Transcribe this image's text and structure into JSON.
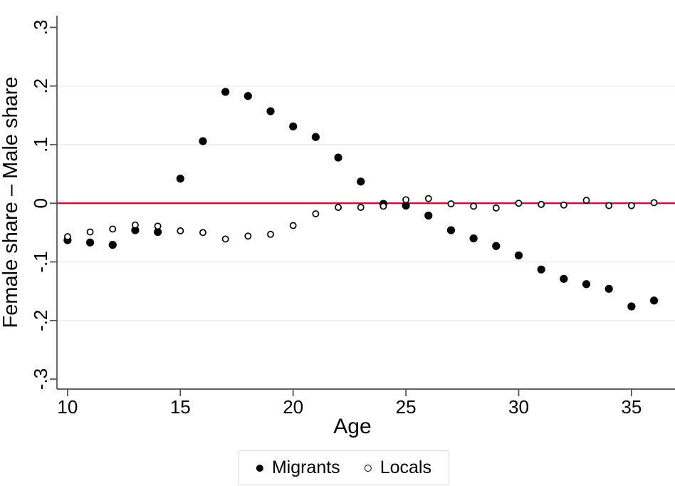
{
  "chart_data": {
    "type": "scatter",
    "title": "",
    "xlabel": "Age",
    "ylabel": "Female share – Male share",
    "x": [
      10,
      11,
      12,
      13,
      14,
      15,
      16,
      17,
      18,
      19,
      20,
      21,
      22,
      23,
      24,
      25,
      26,
      27,
      28,
      29,
      30,
      31,
      32,
      33,
      34,
      35,
      36
    ],
    "series": [
      {
        "name": "Migrants",
        "marker": "filled-circle",
        "color": "#000000",
        "values": [
          -0.063,
          -0.067,
          -0.071,
          -0.046,
          -0.049,
          0.042,
          0.106,
          0.19,
          0.183,
          0.157,
          0.131,
          0.113,
          0.078,
          0.037,
          -0.001,
          -0.004,
          -0.021,
          -0.046,
          -0.06,
          -0.073,
          -0.089,
          -0.113,
          -0.129,
          -0.138,
          -0.146,
          -0.176,
          -0.166
        ]
      },
      {
        "name": "Locals",
        "marker": "open-circle",
        "color": "#000000",
        "values": [
          -0.057,
          -0.049,
          -0.044,
          -0.037,
          -0.039,
          -0.047,
          -0.05,
          -0.061,
          -0.056,
          -0.053,
          -0.038,
          -0.018,
          -0.007,
          -0.007,
          -0.005,
          0.006,
          0.008,
          -0.001,
          -0.005,
          -0.008,
          0.0,
          -0.002,
          -0.003,
          0.005,
          -0.004,
          -0.004,
          0.001
        ]
      }
    ],
    "xticks": [
      10,
      15,
      20,
      25,
      30,
      35
    ],
    "xtick_labels": [
      "10",
      "15",
      "20",
      "25",
      "30",
      "35"
    ],
    "yticks": [
      0.3,
      0.2,
      0.1,
      0,
      -0.1,
      -0.2,
      -0.3
    ],
    "ytick_labels": [
      ".3",
      ".2",
      ".1",
      "0",
      "-.1",
      "-.2",
      "-.3"
    ],
    "xlim": [
      9.53,
      36.93
    ],
    "ylim": [
      -0.317,
      0.32
    ],
    "grid": true,
    "grid_values": [
      0.2,
      0.1,
      -0.1,
      -0.2
    ],
    "refline": {
      "y": 0,
      "color": "#c1123c"
    },
    "legend": {
      "position": "bottom",
      "entries": [
        "Migrants",
        "Locals"
      ]
    },
    "colors": {
      "gridline": "#e8f0f2",
      "axis": "#4d4d4d",
      "marker": "#000000",
      "refline": "#c1123c",
      "legend_border": "#d9d9d9",
      "background": "#ffffff"
    }
  }
}
